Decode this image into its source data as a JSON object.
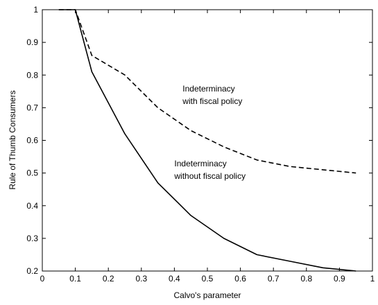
{
  "chart_data": {
    "type": "line",
    "title": "",
    "xlabel": "Calvo's parameter",
    "ylabel": "Rule of Thumb Consumers",
    "xlim": [
      0,
      1
    ],
    "ylim": [
      0.2,
      1
    ],
    "xticks": [
      "0",
      "0.1",
      "0.2",
      "0.3",
      "0.4",
      "0.5",
      "0.6",
      "0.7",
      "0.8",
      "0.9",
      "1"
    ],
    "yticks": [
      "0.2",
      "0.3",
      "0.4",
      "0.5",
      "0.6",
      "0.7",
      "0.8",
      "0.9",
      "1"
    ],
    "grid": false,
    "legend": "none",
    "series": [
      {
        "style": "dashed",
        "color": "#000000",
        "x": [
          0.05,
          0.1,
          0.15,
          0.25,
          0.35,
          0.45,
          0.55,
          0.65,
          0.75,
          0.85,
          0.95
        ],
        "y": [
          1.0,
          1.0,
          0.86,
          0.8,
          0.7,
          0.63,
          0.58,
          0.54,
          0.52,
          0.51,
          0.5
        ]
      },
      {
        "style": "solid",
        "color": "#000000",
        "x": [
          0.05,
          0.1,
          0.15,
          0.25,
          0.35,
          0.45,
          0.55,
          0.65,
          0.75,
          0.85,
          0.95
        ],
        "y": [
          1.0,
          1.0,
          0.81,
          0.62,
          0.47,
          0.37,
          0.3,
          0.25,
          0.23,
          0.21,
          0.2
        ]
      }
    ],
    "annotations": [
      {
        "lines": [
          "Indeterminacy",
          "with fiscal policy"
        ],
        "x": 0.425,
        "y": 0.75
      },
      {
        "lines": [
          "Indeterminacy",
          "without fiscal policy"
        ],
        "x": 0.4,
        "y": 0.52
      }
    ]
  }
}
